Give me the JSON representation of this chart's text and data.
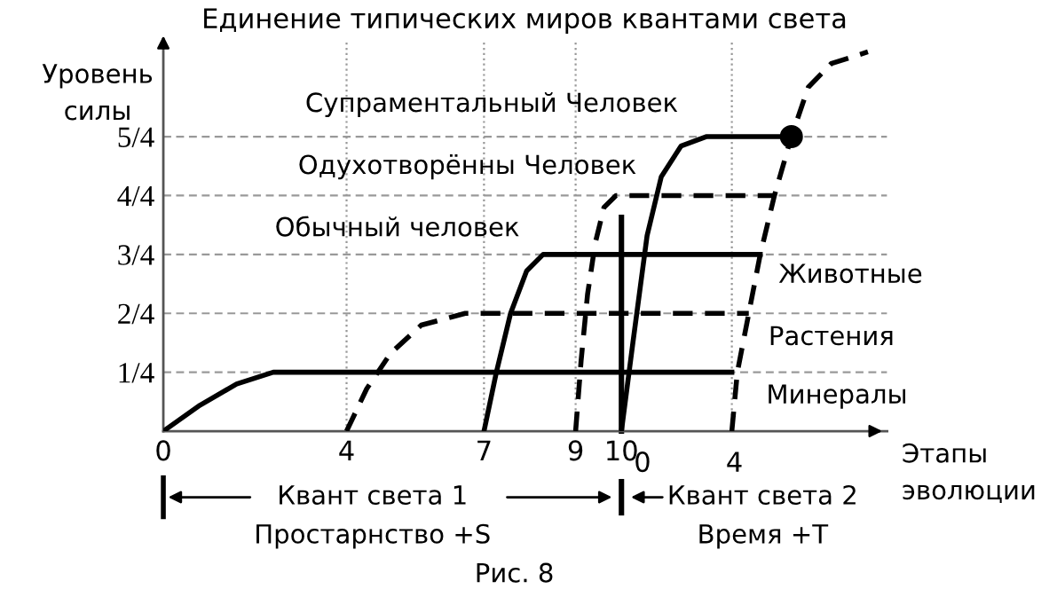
{
  "chart_data": {
    "type": "line",
    "title": "Единение типических миров квантами света",
    "xlabel": "Этапы эволюции",
    "ylabel": "Уровень силы",
    "xlim": [
      0,
      15.8
    ],
    "ylim": [
      0,
      1.65
    ],
    "xticks": [
      0,
      4,
      7,
      9,
      10
    ],
    "yticks": [
      {
        "value": 0.25,
        "label": "1/4"
      },
      {
        "value": 0.5,
        "label": "2/4"
      },
      {
        "value": 0.75,
        "label": "3/4"
      },
      {
        "value": 1,
        "label": "4/4"
      },
      {
        "value": 1.25,
        "label": "5/4"
      }
    ],
    "grid": false,
    "marker": "none",
    "series": [
      {
        "color": "#000000",
        "line_style": "solid",
        "x": [
          0,
          0.8,
          1.6,
          2.4,
          3,
          12.41
        ],
        "values": [
          0,
          0.11,
          0.2,
          0.25,
          0.25,
          0.25
        ]
      },
      {
        "color": "#000000",
        "line_style": "dashed",
        "x": [
          4,
          4.44,
          4.96,
          5.63,
          6.59,
          12.78
        ],
        "values": [
          0,
          0.18,
          0.33,
          0.45,
          0.5,
          0.5
        ]
      },
      {
        "color": "#000000",
        "line_style": "solid",
        "x": [
          7,
          7.27,
          7.58,
          7.93,
          8.29,
          8.54,
          13.03
        ],
        "values": [
          0,
          0.25,
          0.5,
          0.68,
          0.75,
          0.75,
          0.75
        ]
      },
      {
        "color": "#000000",
        "line_style": "dashed",
        "x": [
          9,
          9.12,
          9.26,
          9.43,
          9.62,
          9.88,
          13.34
        ],
        "values": [
          0,
          0.3,
          0.58,
          0.8,
          0.95,
          1,
          1
        ]
      },
      {
        "color": "#000000",
        "line_style": "solid",
        "x": [
          10,
          10.25,
          10.56,
          10.87,
          11.3,
          11.85,
          13.71
        ],
        "values": [
          0,
          0.375,
          0.83,
          1.08,
          1.21,
          1.25,
          1.25
        ]
      },
      {
        "color": "#000000",
        "line_style": "dashed",
        "x": [
          12.41,
          12.53,
          12.78,
          13.03,
          13.34,
          13.71,
          14.08,
          14.58,
          15.38
        ],
        "values": [
          0,
          0.25,
          0.5,
          0.75,
          1,
          1.25,
          1.46,
          1.56,
          1.61
        ]
      },
      {
        "type": "scatter",
        "marker": "circle",
        "color": "#000000",
        "x": [
          13.71
        ],
        "values": [
          1.25
        ]
      }
    ],
    "ref_lines": [
      {
        "axis": "y",
        "value": 0.25,
        "color": "#999999",
        "line_style": "dashed"
      },
      {
        "axis": "y",
        "value": 0.5,
        "color": "#999999",
        "line_style": "dashed"
      },
      {
        "axis": "y",
        "value": 0.75,
        "color": "#999999",
        "line_style": "dashed"
      },
      {
        "axis": "y",
        "value": 1,
        "color": "#999999",
        "line_style": "dashed"
      },
      {
        "axis": "y",
        "value": 1.25,
        "color": "#999999",
        "line_style": "dashed"
      },
      {
        "axis": "x",
        "value": 4,
        "color": "#999999",
        "line_style": "dotted"
      },
      {
        "axis": "x",
        "value": 7,
        "color": "#999999",
        "line_style": "dotted"
      },
      {
        "axis": "x",
        "value": 9,
        "color": "#999999",
        "line_style": "dotted"
      },
      {
        "axis": "x",
        "value": 12.41,
        "color": "#999999",
        "line_style": "dotted"
      },
      {
        "axis": "x",
        "value": 10,
        "color": "#000000",
        "line_style": "solid"
      }
    ],
    "annotations": [
      "Супраментальный Человек",
      "Одухотворённы Человек",
      "Обычный человек",
      "Животные",
      "Растения",
      "Минералы",
      "0",
      "4",
      "Квант света 1",
      "Простарнство +S",
      "Квант света 2",
      "Время +T",
      "Рис. 8"
    ]
  }
}
